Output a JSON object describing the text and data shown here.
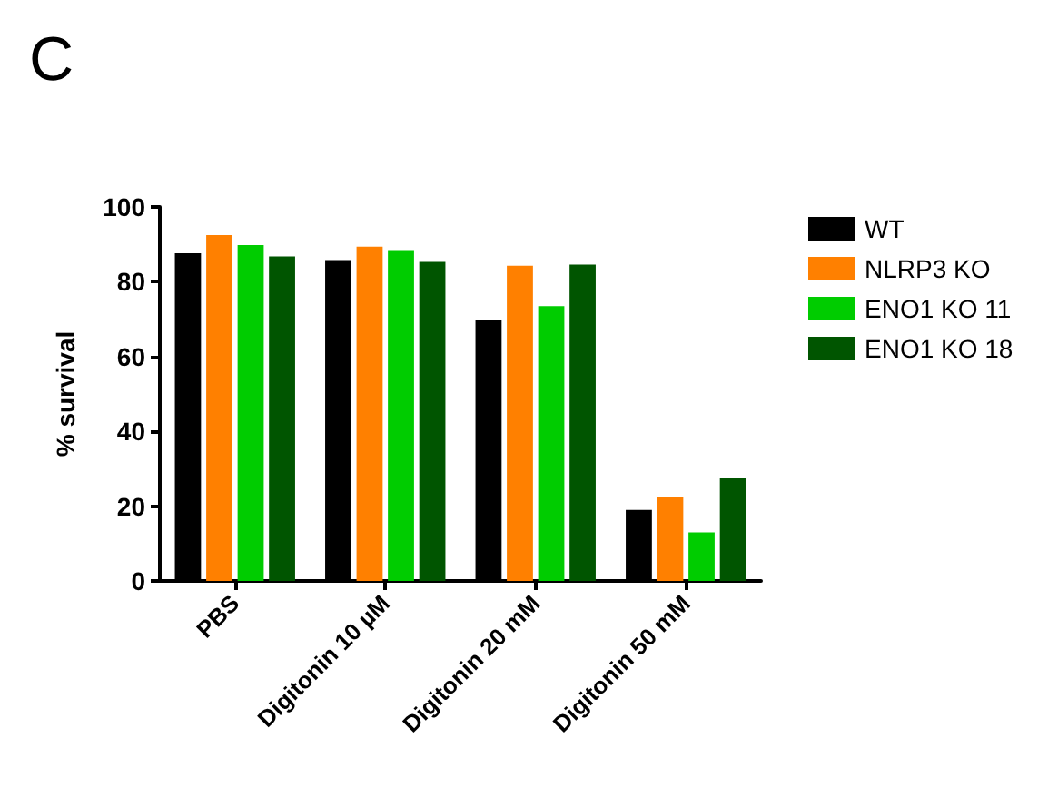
{
  "chart_data": {
    "type": "bar",
    "annotations": [
      "C"
    ],
    "ylabel": "% survival",
    "categories": [
      "PBS",
      "Digitonin 10 µM",
      "Digitonin 20 mM",
      "Digitonin 50 mM"
    ],
    "series": [
      {
        "name": "WT",
        "color": "#000000",
        "values": [
          87.6,
          85.8,
          69.9,
          19.0
        ]
      },
      {
        "name": "NLRP3 KO",
        "color": "#ff8000",
        "values": [
          92.5,
          89.4,
          84.3,
          22.6
        ]
      },
      {
        "name": "ENO1 KO 11",
        "color": "#00cc00",
        "values": [
          89.8,
          88.5,
          73.5,
          13.0
        ]
      },
      {
        "name": "ENO1 KO 18",
        "color": "#005500",
        "values": [
          86.8,
          85.3,
          84.6,
          27.4
        ]
      }
    ],
    "ylim": [
      0,
      100
    ],
    "yticks": [
      0,
      20,
      40,
      60,
      80,
      100
    ],
    "grid": false,
    "legend": "right"
  }
}
